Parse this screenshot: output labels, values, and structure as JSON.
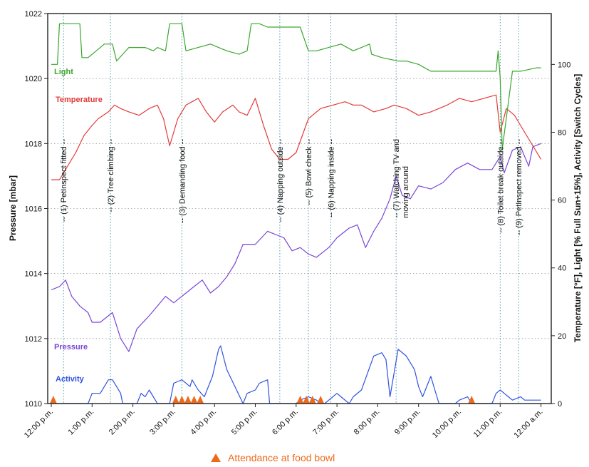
{
  "chart_data": {
    "type": "line",
    "x_ticks": [
      "12:00 p.m.",
      "1:00 p.m.",
      "2:00 p.m.",
      "3:00 p.m.",
      "4:00 p.m.",
      "5:00 p.m.",
      "6:00 p.m.",
      "7:00 p.m.",
      "8:00 p.m.",
      "9:00 p.m.",
      "10:00 p.m.",
      "11:00 p.m.",
      "12:00 a.m."
    ],
    "y_left": {
      "label": "Pressure [mbar]",
      "range": [
        1010,
        1022
      ],
      "ticks": [
        "1010",
        "1012",
        "1014",
        "1016",
        "1018",
        "1020",
        "1022"
      ]
    },
    "y_right": {
      "label": "Temperature [°F],  Light [% Full Sun+15%],  Activity [Switch Cycles]",
      "range": [
        0,
        115
      ],
      "ticks": [
        "0",
        "20",
        "40",
        "60",
        "80",
        "100"
      ]
    },
    "grid": "horizontal dotted",
    "events": [
      {
        "time_h": 0.3,
        "label": "-- (1) PetInspect fitted --"
      },
      {
        "time_h": 1.45,
        "label": "-- (2) Tree climbing --"
      },
      {
        "time_h": 3.2,
        "label": "-- (3) Demanding food --"
      },
      {
        "time_h": 5.6,
        "label": "-- (4) Napping outside --"
      },
      {
        "time_h": 6.3,
        "label": "-- (5) Bowl check --"
      },
      {
        "time_h": 6.85,
        "label": "-- (6) Napping inside --"
      },
      {
        "time_h": 8.45,
        "label": "-- (7) Watching TV and",
        "label2": "moving around"
      },
      {
        "time_h": 11.0,
        "label": "-- (8) Toilet break outside --"
      },
      {
        "time_h": 11.45,
        "label": "-- (9) PetInspect removed --"
      }
    ],
    "series": [
      {
        "name": "Light",
        "axis": "right",
        "color": "#3aa62c",
        "x": [
          0,
          0.15,
          0.2,
          0.7,
          0.75,
          0.9,
          1.3,
          1.5,
          1.6,
          1.9,
          2.3,
          2.5,
          2.6,
          2.8,
          2.9,
          3.2,
          3.3,
          3.6,
          3.9,
          4.1,
          4.3,
          4.6,
          4.8,
          4.9,
          5.1,
          5.3,
          5.8,
          6.1,
          6.3,
          6.5,
          6.8,
          7.1,
          7.4,
          7.6,
          7.8,
          7.85,
          8.1,
          8.5,
          8.7,
          9.0,
          9.3,
          9.5,
          10.0,
          10.5,
          10.9,
          10.95,
          11.0,
          11.05,
          11.3,
          11.5,
          11.9,
          12.0
        ],
        "y": [
          100,
          100,
          112,
          112,
          102,
          102,
          106,
          106,
          101,
          105,
          105,
          104,
          105,
          104,
          112,
          112,
          104,
          105,
          106,
          105,
          104,
          103,
          104,
          112,
          112,
          111,
          111,
          111,
          104,
          104,
          105,
          106,
          104,
          105,
          106,
          103,
          102,
          101,
          101,
          100,
          98,
          98,
          98,
          98,
          98,
          104,
          96,
          75,
          98,
          98,
          99,
          99
        ]
      },
      {
        "name": "Temperature",
        "axis": "right",
        "color": "#e23a3a",
        "x": [
          0,
          0.2,
          0.4,
          0.6,
          0.8,
          1.0,
          1.15,
          1.4,
          1.55,
          1.7,
          1.9,
          2.15,
          2.4,
          2.6,
          2.75,
          2.9,
          3.1,
          3.3,
          3.45,
          3.6,
          3.8,
          4.0,
          4.2,
          4.45,
          4.6,
          4.8,
          5.0,
          5.2,
          5.4,
          5.6,
          5.8,
          6.0,
          6.3,
          6.6,
          6.9,
          7.2,
          7.4,
          7.6,
          7.9,
          8.2,
          8.4,
          8.7,
          9.0,
          9.3,
          9.7,
          10.0,
          10.3,
          10.6,
          10.9,
          11.0,
          11.15,
          11.35,
          11.5,
          11.7,
          11.9,
          12.0
        ],
        "y": [
          66,
          66,
          70,
          74,
          79,
          82,
          84,
          86,
          88,
          87,
          86,
          85,
          87,
          88,
          84,
          76,
          84,
          88,
          89,
          90,
          86,
          83,
          86,
          88,
          86,
          85,
          90,
          82,
          75,
          72,
          72,
          74,
          84,
          87,
          88,
          89,
          88,
          88,
          86,
          87,
          88,
          87,
          85,
          86,
          88,
          90,
          89,
          90,
          91,
          80,
          87,
          85,
          82,
          78,
          74,
          72
        ]
      },
      {
        "name": "Pressure",
        "axis": "left",
        "color": "#7a45d6",
        "x": [
          0,
          0.2,
          0.35,
          0.5,
          0.7,
          0.9,
          1.0,
          1.2,
          1.5,
          1.7,
          1.9,
          2.1,
          2.4,
          2.6,
          2.8,
          3.0,
          3.2,
          3.5,
          3.7,
          3.9,
          4.1,
          4.3,
          4.5,
          4.7,
          5.0,
          5.3,
          5.5,
          5.7,
          5.9,
          6.1,
          6.3,
          6.5,
          6.8,
          7.0,
          7.3,
          7.5,
          7.7,
          7.9,
          8.1,
          8.3,
          8.45,
          8.6,
          8.8,
          9.0,
          9.3,
          9.6,
          9.9,
          10.2,
          10.5,
          10.8,
          11.0,
          11.1,
          11.3,
          11.5,
          11.7,
          11.8,
          12.0
        ],
        "y": [
          1013.5,
          1013.6,
          1013.8,
          1013.3,
          1013.0,
          1012.8,
          1012.5,
          1012.5,
          1012.8,
          1012.0,
          1011.6,
          1012.3,
          1012.7,
          1013.0,
          1013.3,
          1013.1,
          1013.3,
          1013.6,
          1013.8,
          1013.4,
          1013.6,
          1013.9,
          1014.3,
          1014.9,
          1014.9,
          1015.3,
          1015.2,
          1015.1,
          1014.7,
          1014.8,
          1014.6,
          1014.5,
          1014.8,
          1015.1,
          1015.4,
          1015.5,
          1014.8,
          1015.3,
          1015.7,
          1016.3,
          1017.0,
          1016.4,
          1016.3,
          1016.7,
          1016.6,
          1016.8,
          1017.2,
          1017.4,
          1017.2,
          1017.2,
          1017.6,
          1017.1,
          1017.8,
          1017.9,
          1017.3,
          1017.9,
          1018.0
        ]
      },
      {
        "name": "Activity",
        "axis": "right",
        "color": "#2f52e0",
        "x": [
          0,
          0.9,
          1.0,
          1.2,
          1.3,
          1.4,
          1.5,
          1.6,
          1.7,
          1.75,
          2.1,
          2.2,
          2.3,
          2.4,
          2.5,
          2.6,
          2.9,
          3.0,
          3.2,
          3.4,
          3.45,
          3.6,
          3.75,
          3.95,
          4.1,
          4.15,
          4.3,
          4.7,
          4.8,
          5.0,
          5.1,
          5.3,
          5.35,
          6.0,
          6.1,
          6.3,
          6.5,
          6.6,
          6.7,
          7.0,
          7.1,
          7.3,
          7.4,
          7.6,
          7.9,
          8.1,
          8.2,
          8.3,
          8.5,
          8.7,
          8.9,
          9.0,
          9.1,
          9.3,
          9.4,
          9.5,
          9.9,
          10.0,
          10.2,
          10.3,
          10.8,
          10.9,
          11.0,
          11.1,
          11.2,
          11.3,
          11.5,
          11.6,
          12.0
        ],
        "y": [
          0,
          0,
          3,
          3,
          5,
          7,
          7,
          5,
          3,
          0,
          0,
          3,
          2,
          4,
          2,
          0,
          0,
          6,
          7,
          5,
          7,
          4,
          2,
          8,
          16,
          17,
          10,
          0,
          3,
          4,
          6,
          7,
          0,
          0,
          1,
          2,
          1,
          0,
          0,
          3,
          2,
          0,
          2,
          4,
          14,
          15,
          13,
          2,
          16,
          14,
          10,
          5,
          2,
          8,
          4,
          0,
          0,
          1,
          2,
          0,
          0,
          3,
          4,
          3,
          2,
          1,
          2,
          1,
          1
        ]
      }
    ],
    "food_bowl_times_h": [
      0.05,
      3.05,
      3.2,
      3.35,
      3.5,
      3.65,
      6.1,
      6.25,
      6.4,
      6.6,
      10.3
    ],
    "series_labels": {
      "Light": "Light",
      "Temperature": "Temperature",
      "Pressure": "Pressure",
      "Activity": "Activity"
    },
    "legend": {
      "label": "Attendance at food bowl",
      "color": "#ee6a1a",
      "marker": "triangle",
      "placement": "bottom-center"
    }
  }
}
